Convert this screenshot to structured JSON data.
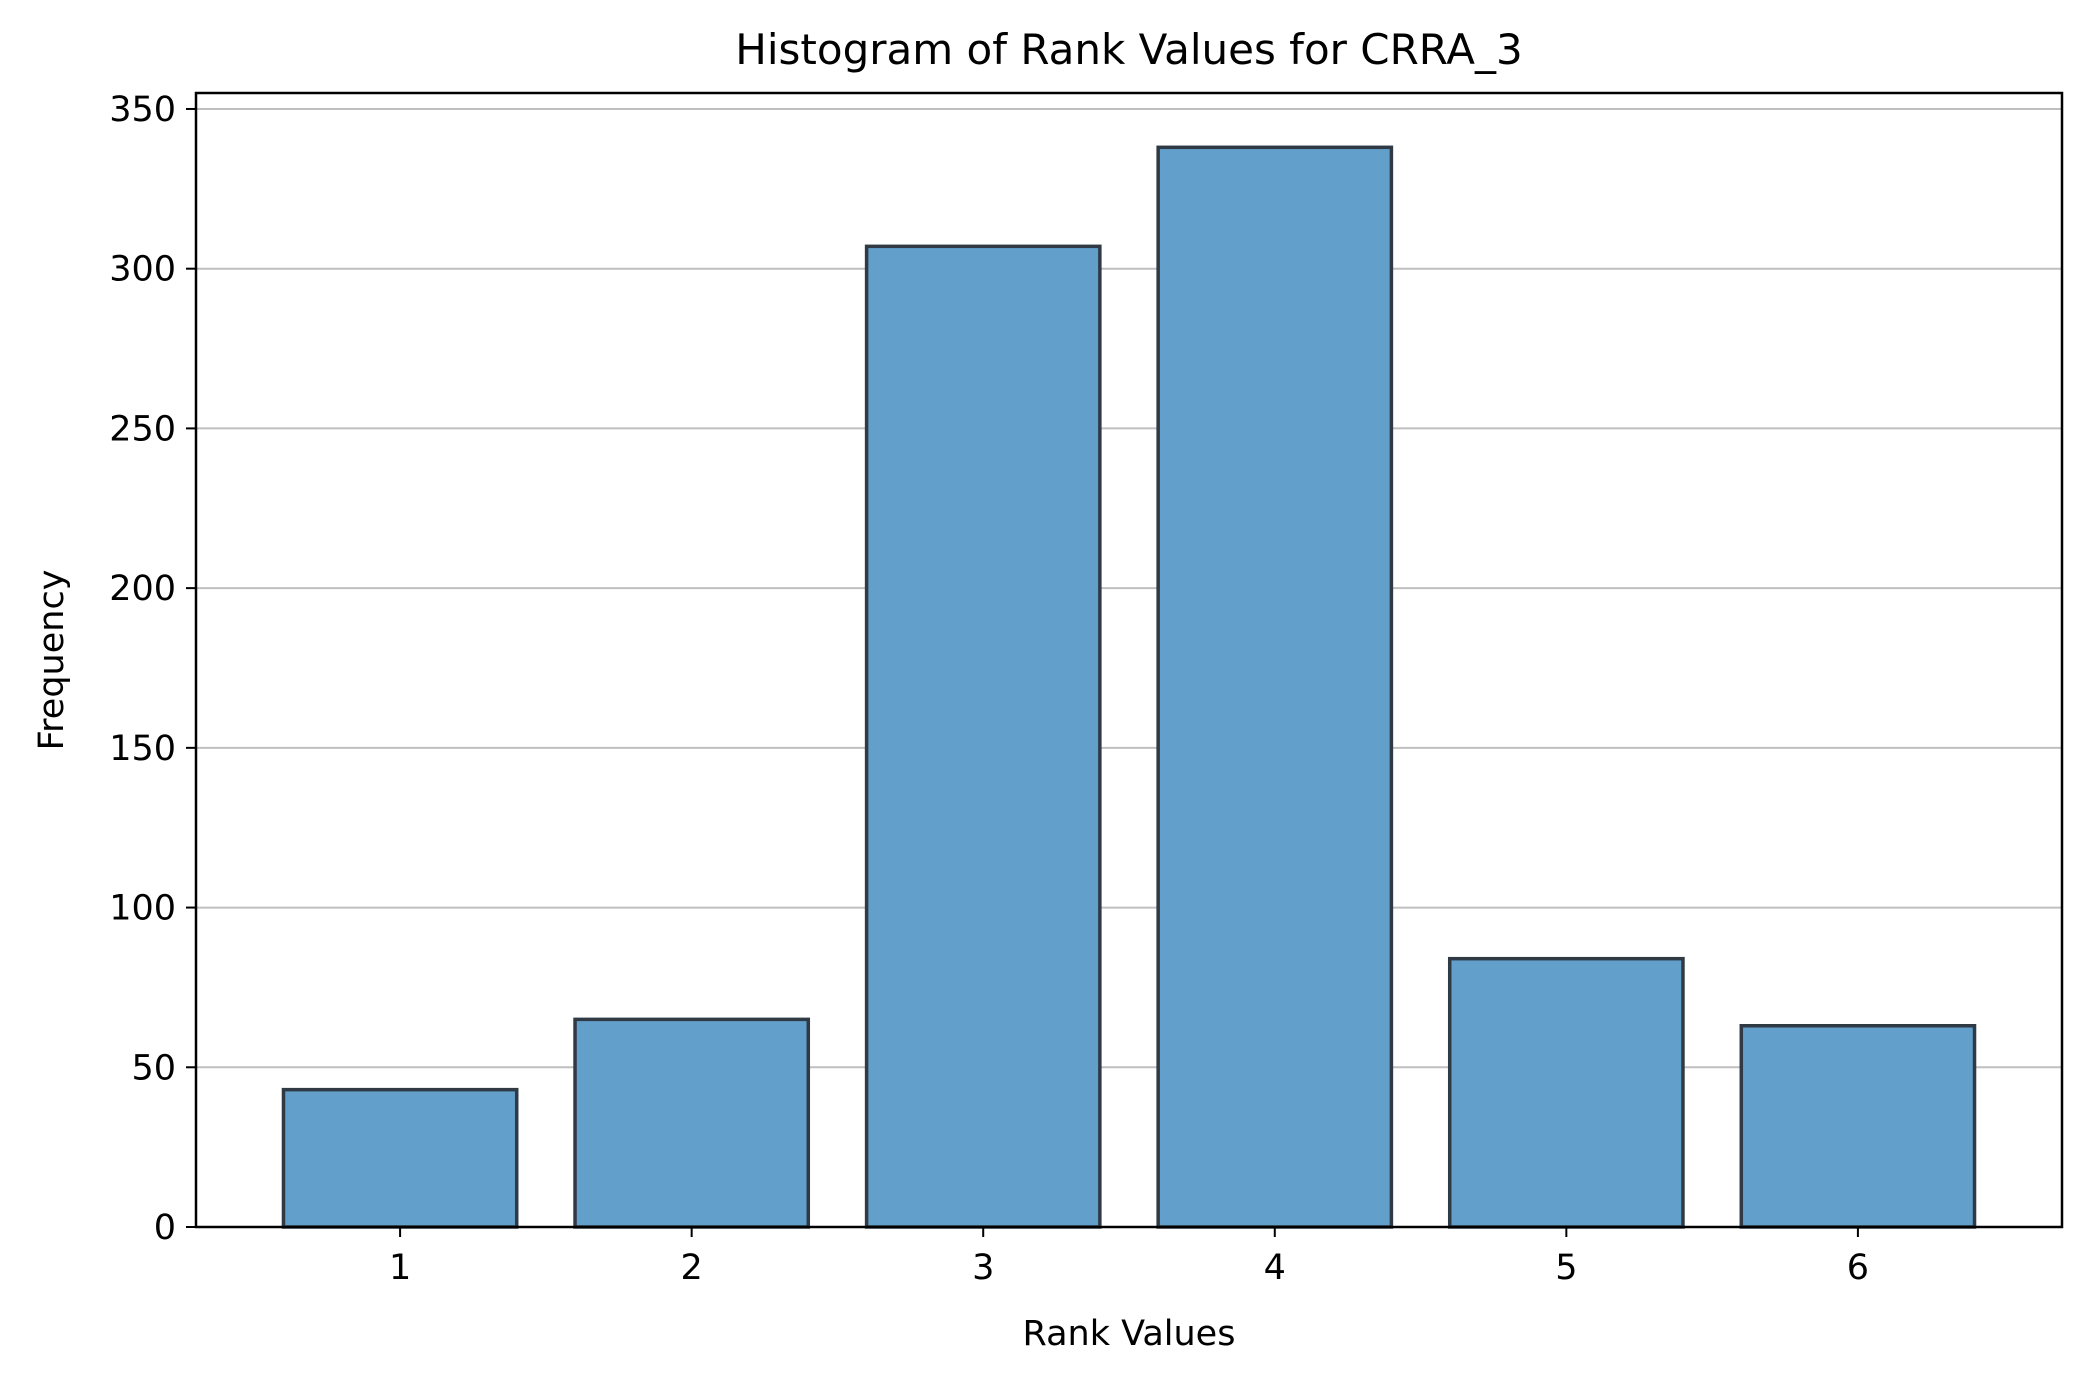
{
  "chart_data": {
    "type": "bar",
    "title": "Histogram of Rank Values for CRRA_3",
    "xlabel": "Rank Values",
    "ylabel": "Frequency",
    "categories": [
      "1",
      "2",
      "3",
      "4",
      "5",
      "6"
    ],
    "values": [
      43,
      65,
      307,
      338,
      84,
      63
    ],
    "xlim": [
      0.3,
      6.7
    ],
    "ylim": [
      0,
      355
    ],
    "yticks": [
      0,
      50,
      100,
      150,
      200,
      250,
      300,
      350
    ],
    "grid": "y-axis only",
    "legend": "none",
    "colors": {
      "bar_fill": "#629fca",
      "bar_edge": "#2f3a45",
      "grid": "#b0b0b0"
    }
  }
}
